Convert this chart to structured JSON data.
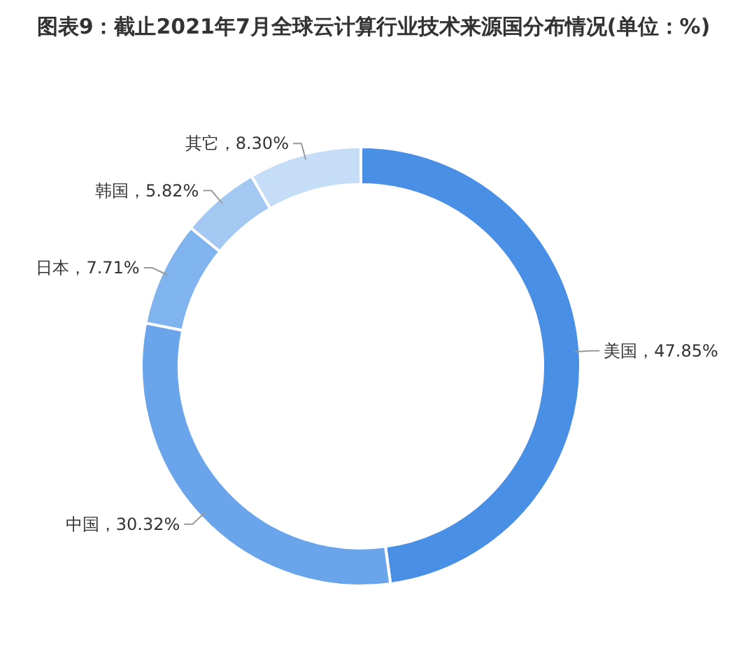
{
  "chart_data": {
    "type": "donut",
    "title": "图表9：截止2021年7月全球云计算行业技术来源国分布情况(单位：%)",
    "categories": [
      "美国",
      "中国",
      "日本",
      "韩国",
      "其它"
    ],
    "values": [
      47.85,
      30.32,
      7.71,
      5.82,
      8.3
    ],
    "colors": [
      "#4a8fe6",
      "#6aa5ec",
      "#80b4ef",
      "#a3c9f3",
      "#c6ddf7"
    ],
    "value_labels": [
      "47.85%",
      "30.32%",
      "7.71%",
      "5.82%",
      "8.30%"
    ],
    "legend": false
  }
}
